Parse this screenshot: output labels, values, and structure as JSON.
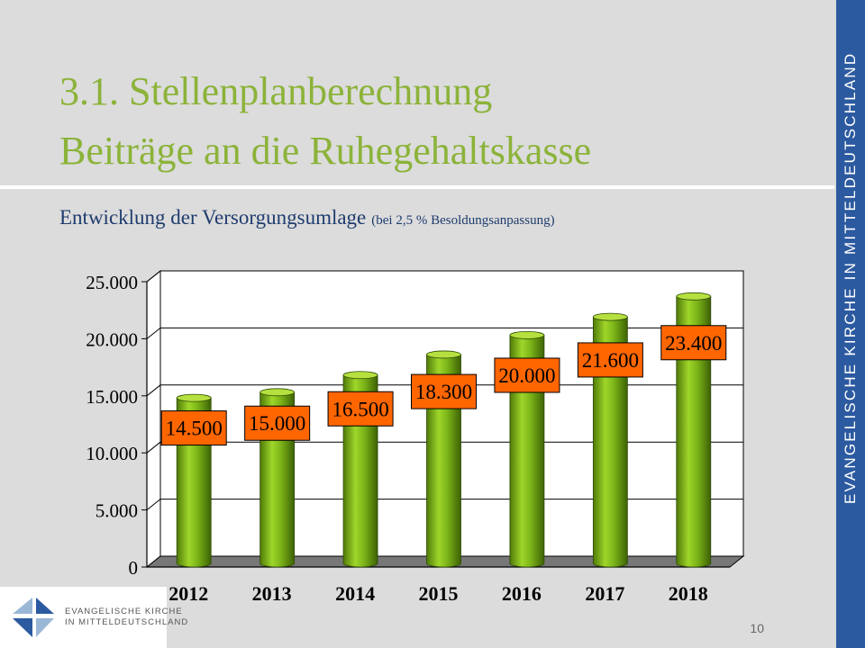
{
  "slide": {
    "title_line1": "3.1. Stellenplanberechnung",
    "title_line2": "Beiträge an die Ruhegehaltskasse",
    "subtitle": "Entwicklung der Versorgungsumlage",
    "subtitle_note": "(bei 2,5 % Besoldungsanpassung)",
    "side_text": "EVANGELISCHE KIRCHE IN MITTELDEUTSCHLAND",
    "logo_line1": "EVANGELISCHE KIRCHE",
    "logo_line2": "IN MITTELDEUTSCHLAND",
    "page_number": "10"
  },
  "colors": {
    "title": "#8cb33a",
    "subtitle": "#1f3c6e",
    "side_bar": "#2c5aa0",
    "bar_fill": "#7cb518",
    "label_box": "#ff6600"
  },
  "chart_data": {
    "type": "bar",
    "style": "3d-cylinder",
    "categories": [
      "2012",
      "2013",
      "2014",
      "2015",
      "2016",
      "2017",
      "2018"
    ],
    "values": [
      14500,
      15000,
      16500,
      18300,
      20000,
      21600,
      23400
    ],
    "data_labels": [
      "14.500",
      "15.000",
      "16.500",
      "18.300",
      "20.000",
      "21.600",
      "23.400"
    ],
    "ylim": [
      0,
      25000
    ],
    "yticks": [
      0,
      5000,
      10000,
      15000,
      20000,
      25000
    ],
    "ytick_labels": [
      "0",
      "5.000",
      "10.000",
      "15.000",
      "20.000",
      "25.000"
    ],
    "grid": true,
    "legend": "none",
    "title": "",
    "xlabel": "",
    "ylabel": ""
  }
}
